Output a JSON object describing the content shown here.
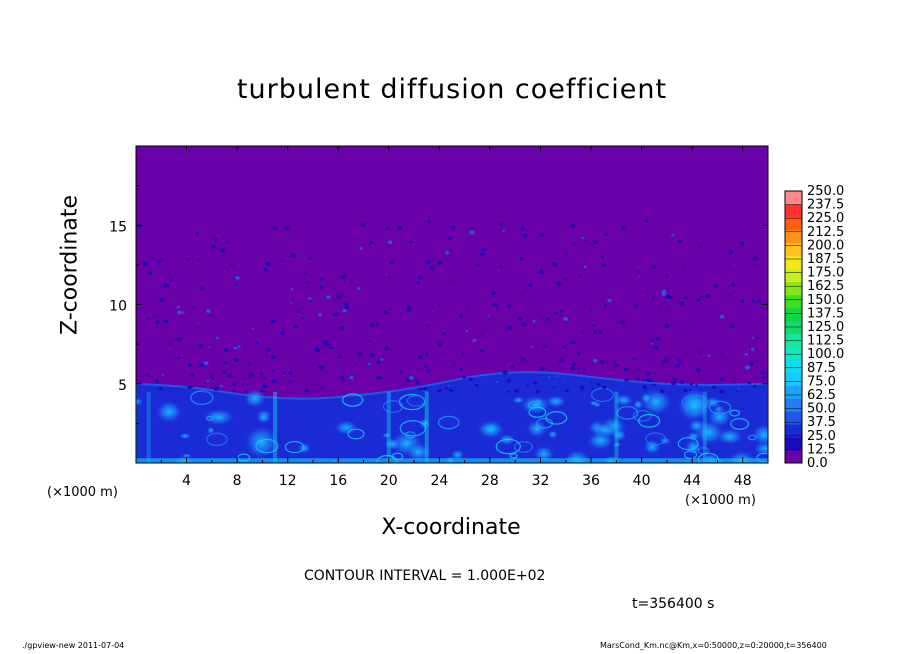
{
  "chart_data": {
    "type": "heatmap",
    "title": "turbulent diffusion coefficient",
    "xlabel": "X-coordinate",
    "ylabel": "Z-coordinate",
    "x_unit": "(×1000 m)",
    "xlim": [
      0,
      50
    ],
    "ylim": [
      0,
      20
    ],
    "x_ticks": [
      "4",
      "8",
      "12",
      "16",
      "20",
      "24",
      "28",
      "32",
      "36",
      "40",
      "44",
      "48"
    ],
    "y_ticks": [
      "5",
      "10",
      "15"
    ],
    "colorbar_levels": [
      "0.0",
      "12.5",
      "25.0",
      "37.5",
      "50.0",
      "62.5",
      "75.0",
      "87.5",
      "100.0",
      "112.5",
      "125.0",
      "137.5",
      "150.0",
      "162.5",
      "175.0",
      "187.5",
      "200.0",
      "212.5",
      "225.0",
      "237.5",
      "250.0"
    ],
    "colorbar_colors": [
      "#6a00a8",
      "#1c0ab8",
      "#1a2bd6",
      "#1f57e8",
      "#1f7ff4",
      "#1fa3ff",
      "#16c8ff",
      "#10dcee",
      "#12e8c8",
      "#14e89c",
      "#12d870",
      "#10d840",
      "#40e020",
      "#86e81c",
      "#c8ee1c",
      "#f4e81a",
      "#ffc21a",
      "#ff9216",
      "#ff5c14",
      "#ff3030",
      "#ff8a8a"
    ],
    "boundary_layer_height_km": [
      5.0,
      4.8,
      4.2,
      4.0,
      4.3,
      4.8,
      5.6,
      5.8,
      5.4,
      5.0,
      4.9,
      5.0
    ]
  },
  "contour_interval": "CONTOUR INTERVAL = 1.000E+02",
  "time_label": "t=356400 s",
  "footer_left": "./gpview-new  2011-07-04",
  "footer_right": "MarsCond_Km.nc@Km,x=0:50000,z=0:20000,t=356400"
}
